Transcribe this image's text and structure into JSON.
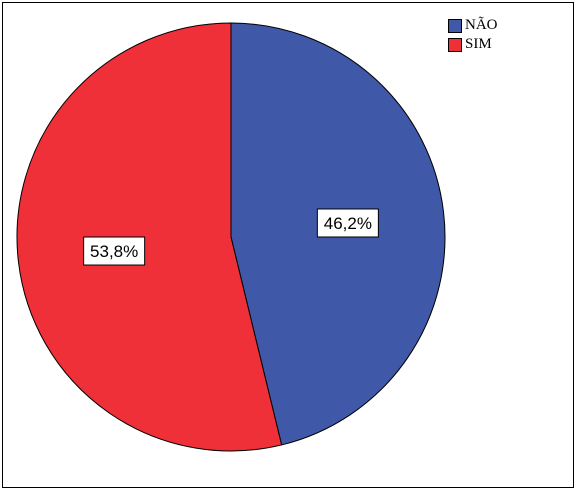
{
  "chart_data": {
    "type": "pie",
    "categories": [
      "NÃO",
      "SIM"
    ],
    "values": [
      46.2,
      53.8
    ],
    "labels": [
      "46,2%",
      "53,8%"
    ],
    "colors": [
      "#3f58a8",
      "#ef3038"
    ],
    "start_angle_deg": 0,
    "direction": "clockwise",
    "legend_position": "top-right",
    "title": "",
    "xlabel": "",
    "ylabel": ""
  }
}
